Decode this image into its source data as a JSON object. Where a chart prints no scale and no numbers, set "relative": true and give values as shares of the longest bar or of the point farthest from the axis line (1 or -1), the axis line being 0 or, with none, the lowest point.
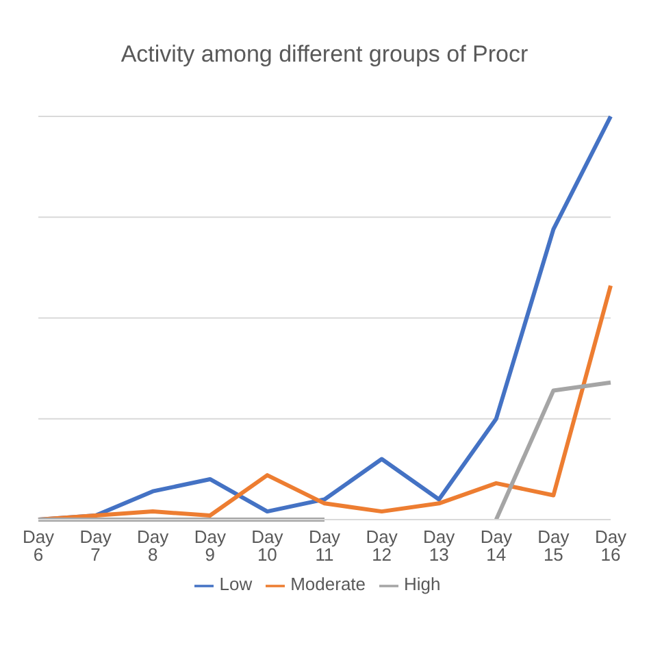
{
  "chart_data": {
    "type": "line",
    "title": "Activity among different groups of Procr",
    "relative": true,
    "grid": "y",
    "legend": "bottom",
    "marker": "none",
    "categories": [
      "Day 6",
      "Day 7",
      "Day 8",
      "Day 9",
      "Day 10",
      "Day 11",
      "Day 12",
      "Day 13",
      "Day 14",
      "Day 15",
      "Day 16"
    ],
    "series": [
      {
        "name": "Low",
        "color": "#4472c4",
        "values": [
          0,
          0.01,
          0.07,
          0.1,
          0.02,
          0.05,
          0.15,
          0.05,
          0.25,
          0.72,
          1
        ]
      },
      {
        "name": "Moderate",
        "color": "#ed7d31",
        "values": [
          0,
          0.01,
          0.02,
          0.01,
          0.11,
          0.04,
          0.02,
          0.04,
          0.09,
          0.06,
          0.58
        ]
      },
      {
        "name": "High",
        "color": "#a5a5a5",
        "values": [
          0,
          0,
          0,
          0,
          0,
          0,
          null,
          null,
          0,
          0.32,
          0.34
        ]
      }
    ]
  }
}
